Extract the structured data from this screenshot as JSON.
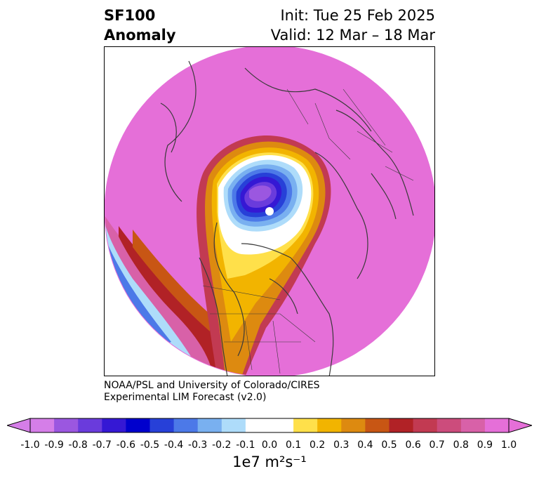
{
  "title": {
    "line1": "SF100",
    "line2": "Anomaly",
    "init": "Init: Tue 25 Feb 2025",
    "valid": "Valid: 12 Mar – 18 Mar"
  },
  "credit": {
    "line1": "NOAA/PSL and University of Colorado/CIRES",
    "line2": "Experimental LIM Forecast (v2.0)"
  },
  "colorbar": {
    "ticks": [
      "-1.0",
      "-0.9",
      "-0.8",
      "-0.7",
      "-0.6",
      "-0.5",
      "-0.4",
      "-0.3",
      "-0.2",
      "-0.1",
      "0.0",
      "0.1",
      "0.2",
      "0.3",
      "0.4",
      "0.5",
      "0.6",
      "0.7",
      "0.8",
      "0.9",
      "1.0"
    ],
    "colors": [
      "#d57ee8",
      "#9b57e0",
      "#6a3bdc",
      "#3518d4",
      "#0000cd",
      "#2740d8",
      "#4c79e8",
      "#79b0f0",
      "#aedcfa",
      "#ffffff",
      "#ffffff",
      "#ffe04a",
      "#f2b400",
      "#dd8a10",
      "#c85614",
      "#b12226",
      "#c23a52",
      "#cc4c7c",
      "#d861a8",
      "#e56fd8"
    ],
    "under_color": "#d57ee8",
    "over_color": "#e56fd8",
    "label": "1e7 m²s⁻¹"
  },
  "map": {
    "projection": "north-polar-stereographic",
    "background_fill": "#e56fd8",
    "line_color": "#3a3a3a"
  }
}
